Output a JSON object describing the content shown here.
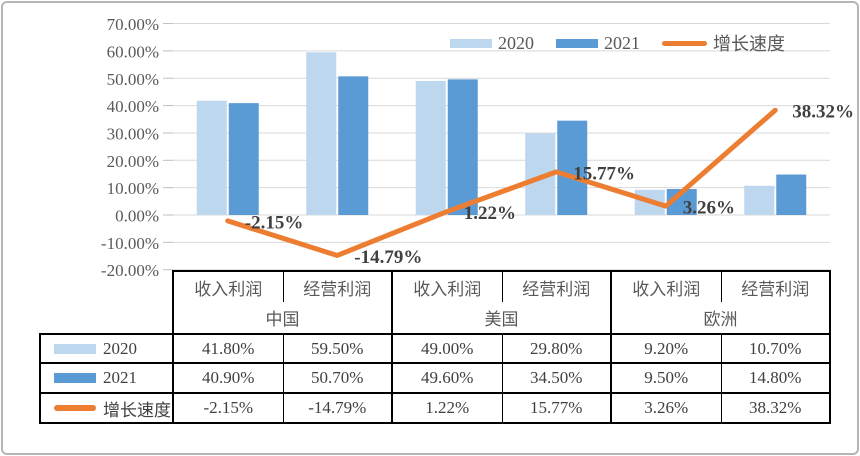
{
  "legend": {
    "items": [
      {
        "label": "2020",
        "type": "bar"
      },
      {
        "label": "2021",
        "type": "bar"
      },
      {
        "label": "增长速度",
        "type": "line"
      }
    ]
  },
  "chart_data": {
    "type": "combo bar+line",
    "categories": [
      "收入利润",
      "经营利润",
      "收入利润",
      "经营利润",
      "收入利润",
      "经营利润"
    ],
    "category_groups": [
      {
        "label": "中国",
        "cols": [
          0,
          1
        ]
      },
      {
        "label": "美国",
        "cols": [
          2,
          3
        ]
      },
      {
        "label": "欧洲",
        "cols": [
          4,
          5
        ]
      }
    ],
    "series": [
      {
        "name": "2020",
        "type": "bar",
        "color": "#BDD7EE",
        "values": [
          41.8,
          59.5,
          49.0,
          29.8,
          9.2,
          10.7
        ]
      },
      {
        "name": "2021",
        "type": "bar",
        "color": "#5B9BD5",
        "values": [
          40.9,
          50.7,
          49.6,
          34.5,
          9.5,
          14.8
        ]
      },
      {
        "name": "增长速度",
        "type": "line",
        "color": "#ED7D31",
        "values": [
          -2.15,
          -14.79,
          1.22,
          15.77,
          3.26,
          38.32
        ],
        "point_labels": [
          "-2.15%",
          "-14.79%",
          "1.22%",
          "15.77%",
          "3.26%",
          "38.32%"
        ]
      }
    ],
    "y_axis": {
      "ticks": [
        "70.00%",
        "60.00%",
        "50.00%",
        "40.00%",
        "30.00%",
        "20.00%",
        "10.00%",
        "0.00%",
        "-10.00%",
        "-20.00%"
      ],
      "max": 70,
      "min": -20,
      "step": 10
    },
    "grid": true,
    "legend_position": "top",
    "colors": {
      "grid": "#D9D9D9",
      "tick": "#BFBFBF",
      "axis_text": "#595959",
      "label_text": "#404040"
    }
  },
  "table": {
    "col_headers": [
      "收入利润",
      "经营利润",
      "收入利润",
      "经营利润",
      "收入利润",
      "经营利润"
    ],
    "group_headers": [
      "中国",
      "美国",
      "欧洲"
    ],
    "rows": [
      {
        "label": "2020",
        "values": [
          "41.80%",
          "59.50%",
          "49.00%",
          "29.80%",
          "9.20%",
          "10.70%"
        ]
      },
      {
        "label": "2021",
        "values": [
          "40.90%",
          "50.70%",
          "49.60%",
          "34.50%",
          "9.50%",
          "14.80%"
        ]
      },
      {
        "label": "增长速度",
        "values": [
          "-2.15%",
          "-14.79%",
          "1.22%",
          "15.77%",
          "3.26%",
          "38.32%"
        ]
      }
    ]
  }
}
